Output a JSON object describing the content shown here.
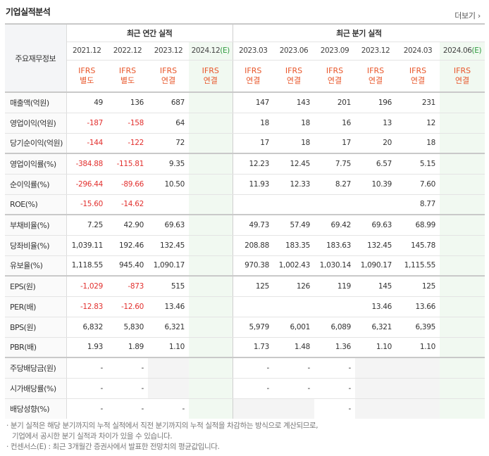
{
  "title": "기업실적분석",
  "more_label": "더보기",
  "more_icon": "chevron-right-icon",
  "corner_label": "주요재무정보",
  "groups": {
    "annual": "최근 연간 실적",
    "quarter": "최근 분기 실적"
  },
  "dates": [
    "2021.12",
    "2022.12",
    "2023.12",
    "2024.12(E)",
    "2023.03",
    "2023.06",
    "2023.09",
    "2023.12",
    "2024.03",
    "2024.06(E)"
  ],
  "ifrs": [
    [
      "IFRS",
      "별도"
    ],
    [
      "IFRS",
      "별도"
    ],
    [
      "IFRS",
      "연결"
    ],
    [
      "IFRS",
      "연결"
    ],
    [
      "IFRS",
      "연결"
    ],
    [
      "IFRS",
      "연결"
    ],
    [
      "IFRS",
      "연결"
    ],
    [
      "IFRS",
      "연결"
    ],
    [
      "IFRS",
      "연결"
    ],
    [
      "IFRS",
      "연결"
    ]
  ],
  "rows": [
    {
      "label": "매출액(억원)",
      "values": [
        "49",
        "136",
        "687",
        "",
        "147",
        "143",
        "201",
        "196",
        "231",
        ""
      ]
    },
    {
      "label": "영업이익(억원)",
      "values": [
        "-187",
        "-158",
        "64",
        "",
        "18",
        "18",
        "16",
        "13",
        "12",
        ""
      ]
    },
    {
      "label": "당기순이익(억원)",
      "values": [
        "-144",
        "-122",
        "72",
        "",
        "17",
        "18",
        "17",
        "20",
        "18",
        ""
      ]
    },
    {
      "label": "영업이익률(%)",
      "values": [
        "-384.88",
        "-115.81",
        "9.35",
        "",
        "12.23",
        "12.45",
        "7.75",
        "6.57",
        "5.15",
        ""
      ]
    },
    {
      "label": "순이익률(%)",
      "values": [
        "-296.44",
        "-89.66",
        "10.50",
        "",
        "11.93",
        "12.33",
        "8.27",
        "10.39",
        "7.60",
        ""
      ]
    },
    {
      "label": "ROE(%)",
      "values": [
        "-15.60",
        "-14.62",
        "",
        "",
        "",
        "",
        "",
        "",
        "8.77",
        ""
      ]
    },
    {
      "label": "부채비율(%)",
      "values": [
        "7.25",
        "42.90",
        "69.63",
        "",
        "49.73",
        "57.49",
        "69.42",
        "69.63",
        "68.99",
        ""
      ]
    },
    {
      "label": "당좌비율(%)",
      "values": [
        "1,039.11",
        "192.46",
        "132.45",
        "",
        "208.88",
        "183.35",
        "183.63",
        "132.45",
        "145.78",
        ""
      ]
    },
    {
      "label": "유보율(%)",
      "values": [
        "1,118.55",
        "945.40",
        "1,090.17",
        "",
        "970.38",
        "1,002.43",
        "1,030.14",
        "1,090.17",
        "1,115.55",
        ""
      ]
    },
    {
      "label": "EPS(원)",
      "values": [
        "-1,029",
        "-873",
        "515",
        "",
        "125",
        "126",
        "119",
        "145",
        "125",
        ""
      ]
    },
    {
      "label": "PER(배)",
      "values": [
        "-12.83",
        "-12.60",
        "13.46",
        "",
        "",
        "",
        "",
        "13.46",
        "13.66",
        ""
      ]
    },
    {
      "label": "BPS(원)",
      "values": [
        "6,832",
        "5,830",
        "6,321",
        "",
        "5,979",
        "6,001",
        "6,089",
        "6,321",
        "6,395",
        ""
      ]
    },
    {
      "label": "PBR(배)",
      "values": [
        "1.93",
        "1.89",
        "1.10",
        "",
        "1.73",
        "1.48",
        "1.36",
        "1.10",
        "1.10",
        ""
      ]
    },
    {
      "label": "주당배당금(원)",
      "values": [
        "-",
        "-",
        "",
        "",
        "-",
        "-",
        "-",
        "",
        "",
        ""
      ]
    },
    {
      "label": "시가배당률(%)",
      "values": [
        "-",
        "-",
        "",
        "",
        "-",
        "-",
        "-",
        "",
        "",
        ""
      ]
    },
    {
      "label": "배당성향(%)",
      "values": [
        "-",
        "-",
        "-",
        "",
        "",
        "",
        "-",
        "",
        "",
        ""
      ]
    }
  ],
  "footnotes": [
    "· 분기 실적은 해당 분기까지의 누적 실적에서 직전 분기까지의 누적 실적을 차감하는 방식으로 계산되므로,",
    "  기업에서 공시한 분기 실적과 차이가 있을 수 있습니다.",
    "· 컨센서스(E) : 최근 3개월간 증권사에서 발표한 전망치의 평균값입니다."
  ]
}
